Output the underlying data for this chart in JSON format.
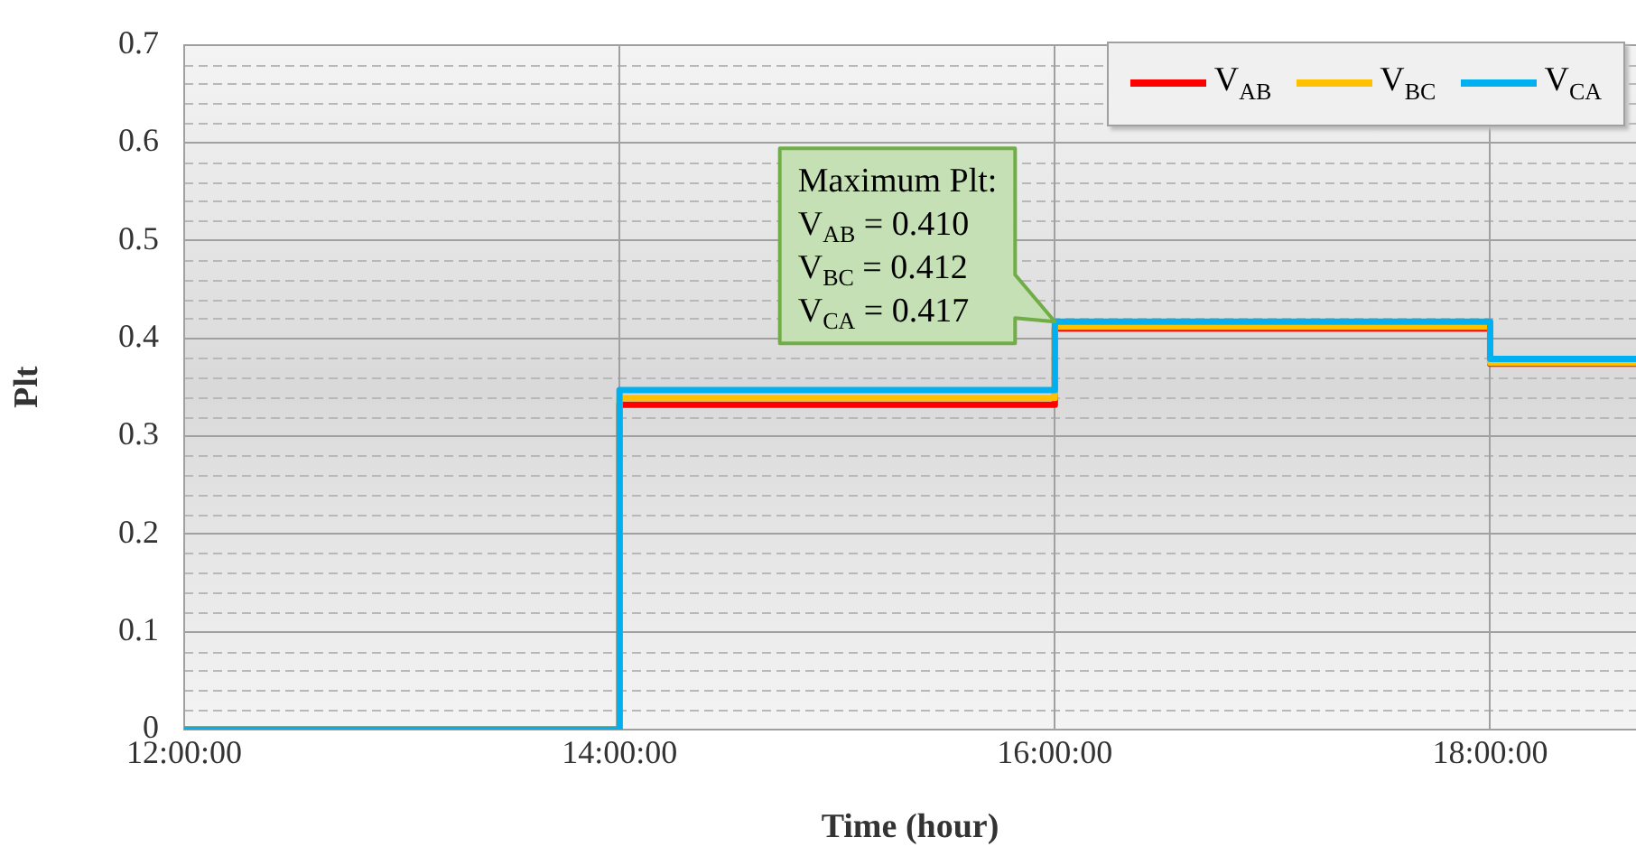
{
  "chart_data": {
    "type": "step",
    "xlabel": "Time (hour)",
    "ylabel": "Plt",
    "x": [
      12,
      14,
      16,
      18,
      18.67
    ],
    "series": [
      {
        "name": "V$_{AB}$",
        "color": "#ff0000",
        "values": [
          0,
          0.332,
          0.41,
          0.374,
          0.374
        ]
      },
      {
        "name": "V$_{BC}$",
        "color": "#ffc000",
        "values": [
          0,
          0.339,
          0.412,
          0.375,
          0.375
        ]
      },
      {
        "name": "V$_{CA}$",
        "color": "#00b0f0",
        "values": [
          0,
          0.347,
          0.417,
          0.379,
          0.379
        ]
      }
    ],
    "xlim": [
      12,
      18.67
    ],
    "xticks": [
      {
        "value": 12,
        "label": "12:00:00"
      },
      {
        "value": 14,
        "label": "14:00:00"
      },
      {
        "value": 16,
        "label": "16:00:00"
      },
      {
        "value": 18,
        "label": "18:00:00"
      }
    ],
    "ylim": [
      0,
      0.7
    ],
    "yticks": [
      0,
      0.1,
      0.2,
      0.3,
      0.4,
      0.5,
      0.6,
      0.7
    ],
    "grid": true,
    "legend": "top right",
    "annotations": [
      "Maximum Plt:",
      "V$_{AB}$ = 0.410",
      "V$_{BC}$ = 0.412",
      {
        "text": "V$_{CA}$ = 0.417",
        "x": 16,
        "y": 0.417
      }
    ]
  }
}
